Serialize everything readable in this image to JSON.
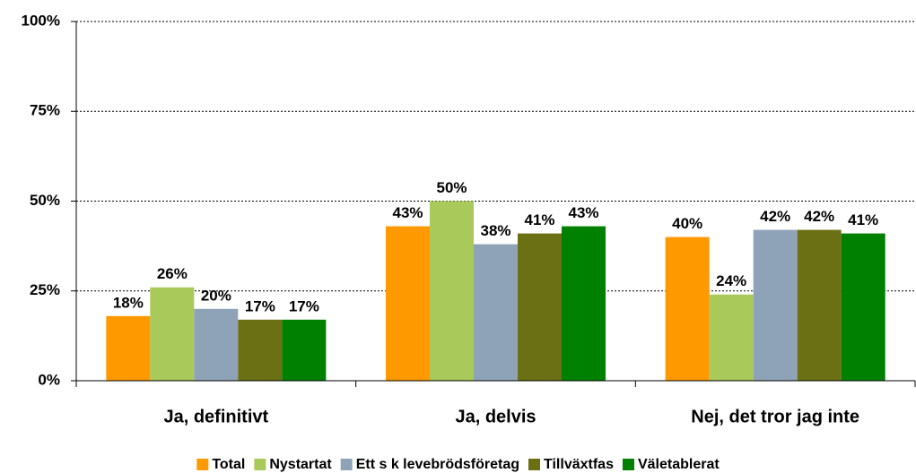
{
  "chart_data": {
    "type": "bar",
    "categories": [
      "Ja, definitivt",
      "Ja, delvis",
      "Nej, det tror jag inte"
    ],
    "series": [
      {
        "name": "Total",
        "color": "#ff9900",
        "values": [
          18,
          43,
          40
        ],
        "value_labels": [
          "18%",
          "43%",
          "40%"
        ]
      },
      {
        "name": "Nystartat",
        "color": "#a9c95a",
        "values": [
          26,
          50,
          24
        ],
        "value_labels": [
          "26%",
          "50%",
          "24%"
        ]
      },
      {
        "name": "Ett s k levebrödsföretag",
        "color": "#8fa3b8",
        "values": [
          20,
          38,
          42
        ],
        "value_labels": [
          "20%",
          "38%",
          "42%"
        ]
      },
      {
        "name": "Tillväxtfas",
        "color": "#6b7014",
        "values": [
          17,
          41,
          42
        ],
        "value_labels": [
          "17%",
          "41%",
          "42%"
        ]
      },
      {
        "name": "Väletablerat",
        "color": "#008000",
        "values": [
          17,
          43,
          41
        ],
        "value_labels": [
          "17%",
          "43%",
          "41%"
        ]
      }
    ],
    "ylim": [
      0,
      100
    ],
    "yticks": [
      {
        "value": 0,
        "label": "0%"
      },
      {
        "value": 25,
        "label": "25%"
      },
      {
        "value": 50,
        "label": "50%"
      },
      {
        "value": 75,
        "label": "75%"
      },
      {
        "value": 100,
        "label": "100%"
      }
    ],
    "grid": true,
    "legend": "bottom"
  }
}
